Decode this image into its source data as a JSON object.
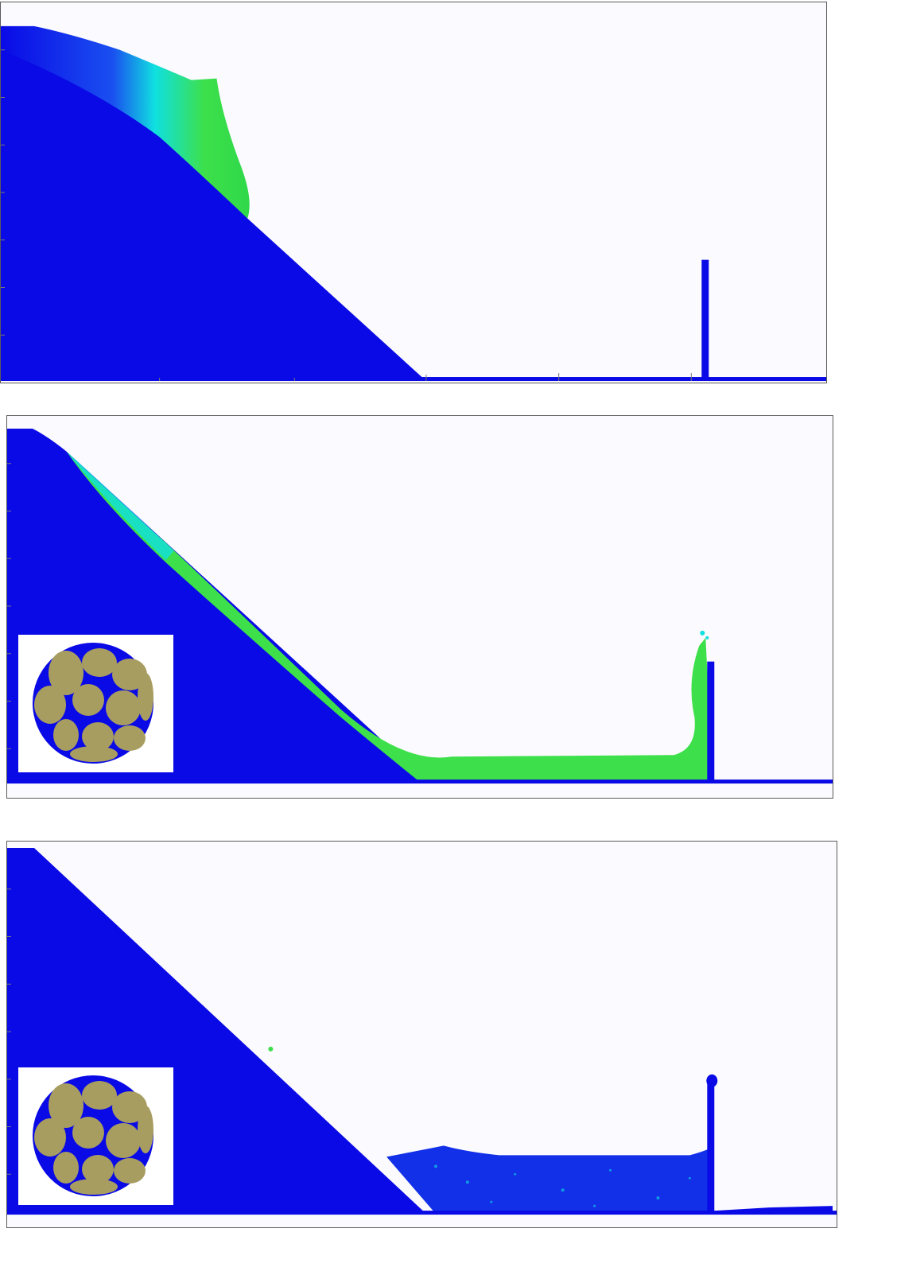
{
  "figure": {
    "panels": [
      {
        "id": "panel-1",
        "stage": "initial-release",
        "has_inset": false
      },
      {
        "id": "panel-2",
        "stage": "impact-at-barrier",
        "has_inset": true
      },
      {
        "id": "panel-3",
        "stage": "deposition",
        "has_inset": true
      }
    ],
    "colors": {
      "background": "#fbfafe",
      "slope": "#0a0ae6",
      "fast_flow": "#3de04a",
      "medium_flow": "#10e0e0",
      "grain_fill": "#a89d60",
      "frame": "#5a5a5a"
    },
    "icons": [
      "granular-sample-icon"
    ]
  }
}
